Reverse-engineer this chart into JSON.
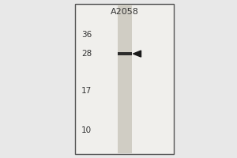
{
  "title": "A2058",
  "mw_markers": [
    36,
    28,
    17,
    10
  ],
  "band_mw": 28,
  "outer_bg": "#e8e8e8",
  "gel_bg": "#f0efec",
  "lane_color": "#d0cdc4",
  "border_color": "#555555",
  "band_color": "#1a1a1a",
  "arrow_color": "#1a1a1a",
  "text_color": "#333333",
  "title_fontsize": 8,
  "marker_fontsize": 7.5,
  "log_min": 8.5,
  "log_max": 42
}
